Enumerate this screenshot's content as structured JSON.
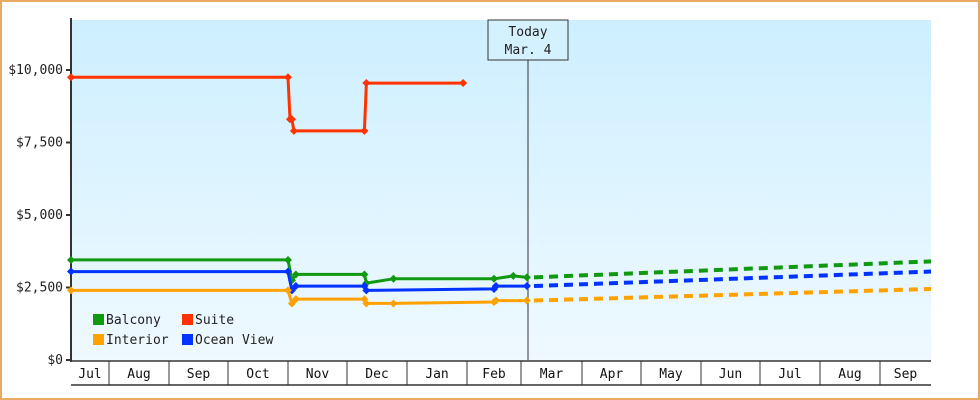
{
  "chart_data": {
    "type": "line",
    "title": "",
    "xlabel": "",
    "ylabel": "",
    "ylim": [
      0,
      12000
    ],
    "y_ticks": [
      "$0",
      "$2,500",
      "$5,000",
      "$7,500",
      "$10,000"
    ],
    "y_tick_values": [
      0,
      2500,
      5000,
      7500,
      10000
    ],
    "x_ticks": [
      "Jul",
      "Aug",
      "Sep",
      "Oct",
      "Nov",
      "Dec",
      "Jan",
      "Feb",
      "Mar",
      "Apr",
      "May",
      "Jun",
      "Jul",
      "Aug",
      "Sep"
    ],
    "today_marker": {
      "line1": "Today",
      "line2": "Mar. 4"
    },
    "legend": [
      {
        "name": "Balcony",
        "color": "#119911"
      },
      {
        "name": "Suite",
        "color": "#ff3300"
      },
      {
        "name": "Interior",
        "color": "#ffa200"
      },
      {
        "name": "Ocean View",
        "color": "#0033ff"
      }
    ],
    "series": [
      {
        "name": "Suite",
        "color": "#ff3300",
        "points": [
          {
            "date": "Jul 1",
            "value": 9750
          },
          {
            "date": "Nov 1",
            "value": 9750
          },
          {
            "date": "Nov 2",
            "value": 8300
          },
          {
            "date": "Nov 3",
            "value": 8300
          },
          {
            "date": "Nov 4",
            "value": 7900
          },
          {
            "date": "Dec 10",
            "value": 7900
          },
          {
            "date": "Dec 11",
            "value": 9550
          },
          {
            "date": "Jan 30",
            "value": 9550
          }
        ]
      },
      {
        "name": "Balcony",
        "color": "#119911",
        "points": [
          {
            "date": "Jul 1",
            "value": 3450
          },
          {
            "date": "Nov 1",
            "value": 3450
          },
          {
            "date": "Nov 3",
            "value": 2750
          },
          {
            "date": "Nov 5",
            "value": 2950
          },
          {
            "date": "Dec 10",
            "value": 2950
          },
          {
            "date": "Dec 11",
            "value": 2650
          },
          {
            "date": "Dec 25",
            "value": 2800
          },
          {
            "date": "Feb 15",
            "value": 2800
          },
          {
            "date": "Feb 25",
            "value": 2900
          },
          {
            "date": "Mar 4",
            "value": 2850
          }
        ],
        "forecast": [
          {
            "date": "Mar 4",
            "value": 2850
          },
          {
            "date": "Sep 30",
            "value": 3400
          }
        ]
      },
      {
        "name": "Ocean View",
        "color": "#0033ff",
        "points": [
          {
            "date": "Jul 1",
            "value": 3050
          },
          {
            "date": "Nov 1",
            "value": 3050
          },
          {
            "date": "Nov 3",
            "value": 2400
          },
          {
            "date": "Nov 5",
            "value": 2550
          },
          {
            "date": "Dec 10",
            "value": 2550
          },
          {
            "date": "Dec 11",
            "value": 2400
          },
          {
            "date": "Feb 15",
            "value": 2450
          },
          {
            "date": "Feb 16",
            "value": 2550
          },
          {
            "date": "Mar 4",
            "value": 2550
          }
        ],
        "forecast": [
          {
            "date": "Mar 4",
            "value": 2550
          },
          {
            "date": "Sep 30",
            "value": 3050
          }
        ]
      },
      {
        "name": "Interior",
        "color": "#ffa200",
        "points": [
          {
            "date": "Jul 1",
            "value": 2400
          },
          {
            "date": "Nov 1",
            "value": 2400
          },
          {
            "date": "Nov 3",
            "value": 1950
          },
          {
            "date": "Nov 5",
            "value": 2100
          },
          {
            "date": "Dec 10",
            "value": 2100
          },
          {
            "date": "Dec 11",
            "value": 1950
          },
          {
            "date": "Dec 25",
            "value": 1950
          },
          {
            "date": "Feb 15",
            "value": 2000
          },
          {
            "date": "Feb 16",
            "value": 2050
          },
          {
            "date": "Mar 4",
            "value": 2050
          }
        ],
        "forecast": [
          {
            "date": "Mar 4",
            "value": 2050
          },
          {
            "date": "Sep 30",
            "value": 2450
          }
        ]
      }
    ]
  }
}
